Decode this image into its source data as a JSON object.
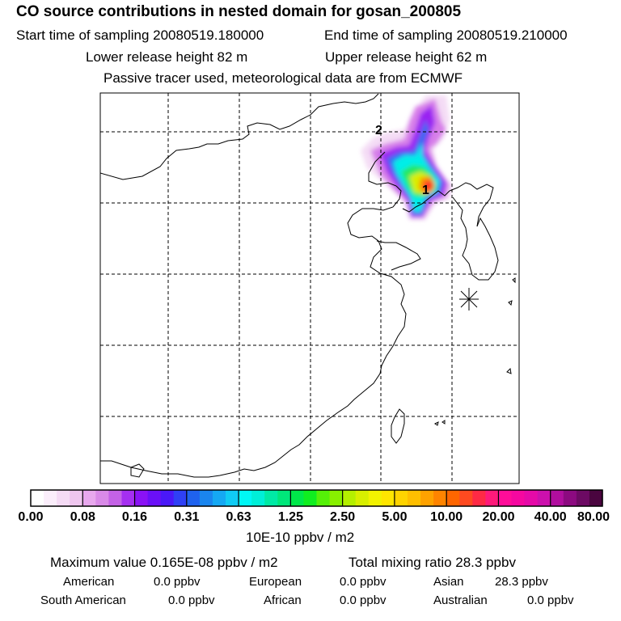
{
  "header": {
    "title": "CO  source contributions in nested domain for gosan_200805",
    "start_time": "Start time of sampling 20080519.180000",
    "end_time": "End time of sampling 20080519.210000",
    "lower_release": "Lower release height   82 m",
    "upper_release": "Upper release height   62 m",
    "tracer_note": "Passive tracer used, meteorological data are from ECMWF"
  },
  "map": {
    "markers": [
      "1",
      "2"
    ],
    "receptor_symbol": "receptor-star"
  },
  "colorbar": {
    "tick_labels": [
      "0.00",
      "0.08",
      "0.16",
      "0.31",
      "0.63",
      "1.25",
      "2.50",
      "5.00",
      "10.00",
      "20.00",
      "40.00",
      "80.00"
    ],
    "units": "10E-10 ppbv / m2",
    "colors": [
      "#ffffff",
      "#fbeefb",
      "#f5dbf5",
      "#efc6ef",
      "#e8a8ee",
      "#d98ae8",
      "#c462e6",
      "#a52ff0",
      "#8a12f5",
      "#6a10f7",
      "#4a18f8",
      "#2f40f5",
      "#1f62ee",
      "#1a85ee",
      "#15a8f3",
      "#10cbf4",
      "#00f7f5",
      "#00efd8",
      "#00eaa5",
      "#00e77a",
      "#00e84a",
      "#10ee20",
      "#55f008",
      "#88f000",
      "#b4f000",
      "#d8ef00",
      "#f2f200",
      "#ffe600",
      "#ffd400",
      "#ffbf00",
      "#ffa200",
      "#ff8400",
      "#ff6600",
      "#ff4a20",
      "#ff2a45",
      "#ff1a7a",
      "#ff0d99",
      "#f508a0",
      "#e50aa8",
      "#cc10ad",
      "#b00e9e",
      "#8c0a80",
      "#6c0a63",
      "#4a053f"
    ]
  },
  "stats": {
    "maximum_value": "Maximum value  0.165E-08 ppbv / m2",
    "total_mixing": "Total mixing ratio       28.3 ppbv",
    "american_label": "American",
    "american_value": "0.0 ppbv",
    "european_label": "European",
    "european_value": "0.0 ppbv",
    "asian_label": "Asian",
    "asian_value": "28.3 ppbv",
    "south_american_label": "South American",
    "south_american_value": "0.0 ppbv",
    "african_label": "African",
    "african_value": "0.0 ppbv",
    "australian_label": "Australian",
    "australian_value": "0.0 ppbv"
  }
}
